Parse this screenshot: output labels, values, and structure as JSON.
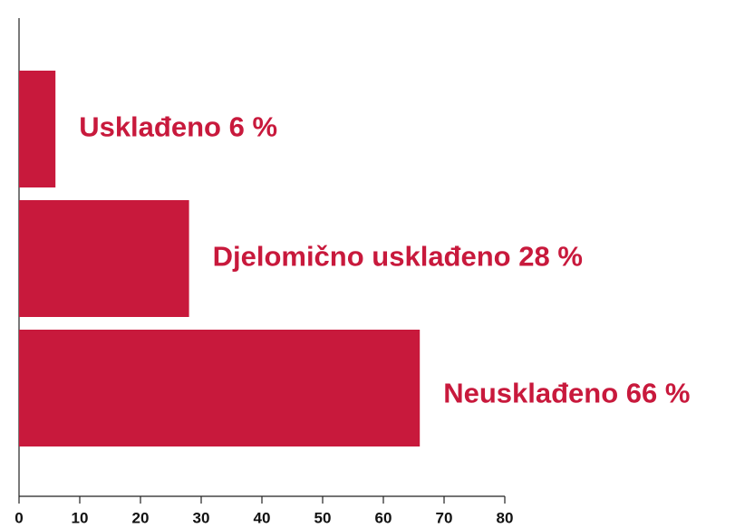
{
  "chart_data": {
    "type": "bar",
    "orientation": "horizontal",
    "categories": [
      "Usklađeno",
      "Djelomično usklađeno",
      "Neusklađeno"
    ],
    "values": [
      6,
      28,
      66
    ],
    "value_labels": [
      "6 %",
      "28 %",
      "66 %"
    ],
    "color": "#c8193c",
    "xlim": [
      0,
      80
    ],
    "xticks": [
      0,
      10,
      20,
      30,
      40,
      50,
      60,
      70,
      80
    ],
    "grid": false
  }
}
